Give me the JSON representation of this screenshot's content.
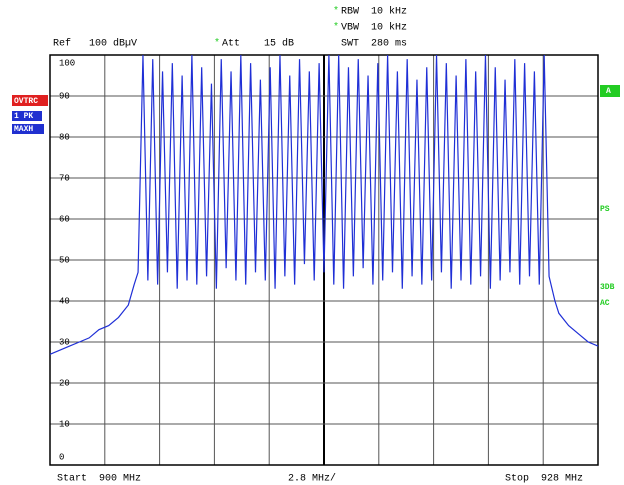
{
  "chart_data": {
    "type": "line",
    "header": {
      "marker": "*",
      "rbw": "RBW  10 kHz",
      "vbw": "VBW  10 kHz",
      "ref": "Ref   100 dBµV",
      "att": "Att    15 dB",
      "swt": "SWT  280 ms"
    },
    "footer": {
      "start": "Start  900 MHz",
      "div": "2.8 MHz/",
      "stop": "Stop  928 MHz"
    },
    "left_badges": {
      "ovtrc": "OVTRC",
      "trace": "1 PK",
      "detector": "MAXH"
    },
    "right_labels": {
      "a": "A",
      "ps": "PS",
      "db3": "3DB",
      "ac": "AC"
    },
    "xlim": [
      900,
      928
    ],
    "xticks": [
      900,
      902.8,
      905.6,
      908.4,
      911.2,
      914,
      916.8,
      919.6,
      922.4,
      925.2,
      928
    ],
    "ylim": [
      0,
      100
    ],
    "yticks": [
      0,
      10,
      20,
      30,
      40,
      50,
      60,
      70,
      80,
      90,
      100
    ],
    "grid": true,
    "x": [
      900,
      900.5,
      901,
      901.5,
      902,
      902.5,
      903,
      903.5,
      904,
      904.3,
      904.5,
      904.75,
      905,
      905.25,
      905.5,
      905.75,
      906,
      906.25,
      906.5,
      906.75,
      907,
      907.25,
      907.5,
      907.75,
      908,
      908.25,
      908.5,
      908.75,
      909,
      909.25,
      909.5,
      909.75,
      910,
      910.25,
      910.5,
      910.75,
      911,
      911.25,
      911.5,
      911.75,
      912,
      912.25,
      912.5,
      912.75,
      913,
      913.25,
      913.5,
      913.75,
      914,
      914.25,
      914.5,
      914.75,
      915,
      915.25,
      915.5,
      915.75,
      916,
      916.25,
      916.5,
      916.75,
      917,
      917.25,
      917.5,
      917.75,
      918,
      918.25,
      918.5,
      918.75,
      919,
      919.25,
      919.5,
      919.75,
      920,
      920.25,
      920.5,
      920.75,
      921,
      921.25,
      921.5,
      921.75,
      922,
      922.25,
      922.5,
      922.75,
      923,
      923.25,
      923.5,
      923.75,
      924,
      924.25,
      924.5,
      924.75,
      925,
      925.25,
      925.5,
      925.8,
      926,
      926.5,
      927,
      927.5,
      928
    ],
    "series": [
      {
        "name": "1 PK",
        "color": "#1f2fd6",
        "values": [
          27,
          28,
          29,
          30,
          31,
          33,
          34,
          36,
          39,
          44,
          47,
          100,
          45,
          99,
          44,
          96,
          47,
          98,
          43,
          95,
          45,
          100,
          44,
          97,
          46,
          93,
          43,
          99,
          48,
          96,
          45,
          100,
          44,
          98,
          47,
          94,
          45,
          97,
          43,
          100,
          46,
          95,
          44,
          99,
          49,
          96,
          45,
          98,
          47,
          100,
          44,
          100,
          43,
          97,
          46,
          99,
          48,
          95,
          44,
          98,
          45,
          100,
          47,
          96,
          43,
          99,
          46,
          94,
          44,
          97,
          45,
          100,
          47,
          98,
          43,
          95,
          45,
          99,
          44,
          96,
          46,
          100,
          43,
          97,
          45,
          94,
          47,
          99,
          44,
          98,
          46,
          96,
          44,
          100,
          46,
          40,
          37,
          34,
          32,
          30,
          29
        ]
      }
    ]
  }
}
